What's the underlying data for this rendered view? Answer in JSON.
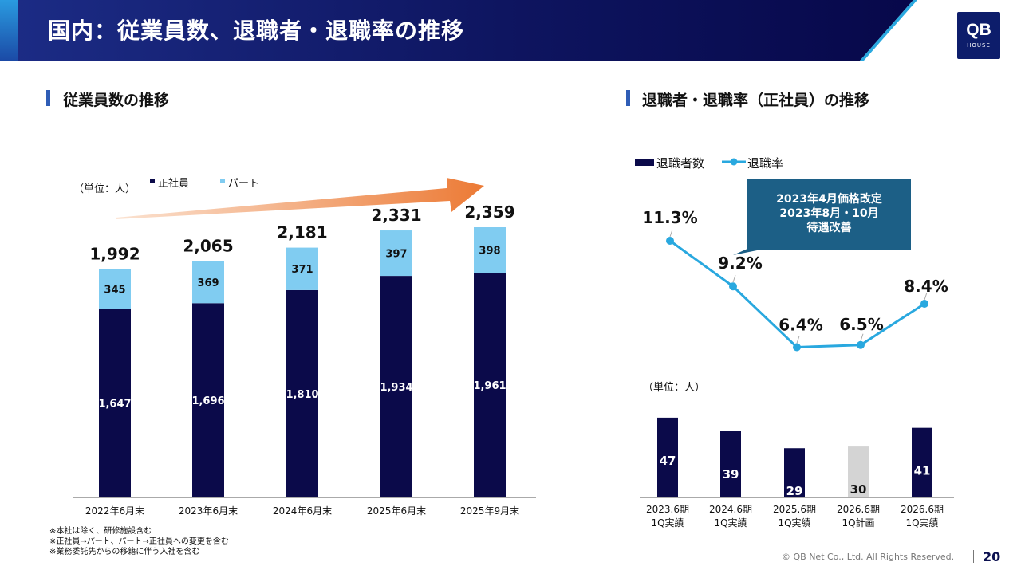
{
  "header": {
    "title": "国内：従業員数、退職者・退職率の推移"
  },
  "logo": {
    "line1": "QB",
    "line2": "HOUSE"
  },
  "colors": {
    "navy": "#0b0a4a",
    "light_blue": "#80ccf1",
    "line_blue": "#29a8df",
    "gray_bar": "#d4d4d4",
    "callout": "#1c5f86",
    "arrow": "#ec7a35"
  },
  "left_section": {
    "title": "従業員数の推移",
    "unit": "（単位：人）",
    "legend": [
      "正社員",
      "パート"
    ]
  },
  "right_section": {
    "title": "退職者・退職率（正社員）の推移",
    "legend": [
      "退職者数",
      "退職率"
    ],
    "unit": "（単位：人）"
  },
  "callout": {
    "lines": [
      "2023年4月価格改定",
      "2023年8月・10月",
      "待遇改善"
    ]
  },
  "chart_data": [
    {
      "type": "bar",
      "stacked": true,
      "title": "従業員数の推移",
      "categories": [
        "2022年6月末",
        "2023年6月末",
        "2024年6月末",
        "2025年6月末",
        "2025年9月末"
      ],
      "series": [
        {
          "name": "正社員",
          "values": [
            1647,
            1696,
            1810,
            1934,
            1961
          ],
          "labels": [
            "1,647",
            "1,696",
            "1,810",
            "1,934",
            "1,961"
          ]
        },
        {
          "name": "パート",
          "values": [
            345,
            369,
            371,
            397,
            398
          ],
          "labels": [
            "345",
            "369",
            "371",
            "397",
            "398"
          ]
        }
      ],
      "totals": [
        1992,
        2065,
        2181,
        2331,
        2359
      ],
      "total_labels": [
        "1,992",
        "2,065",
        "2,181",
        "2,331",
        "2,359"
      ],
      "ylim": [
        0,
        2600
      ]
    },
    {
      "type": "bar+line",
      "title": "退職者・退職率（正社員）の推移",
      "categories": [
        [
          "2023.6期",
          "1Q実績"
        ],
        [
          "2024.6期",
          "1Q実績"
        ],
        [
          "2025.6期",
          "1Q実績"
        ],
        [
          "2026.6期",
          "1Q計画"
        ],
        [
          "2026.6期",
          "1Q実績"
        ]
      ],
      "series": [
        {
          "name": "退職者数",
          "type": "bar",
          "values": [
            47,
            39,
            29,
            30,
            41
          ],
          "highlight_index": 3
        },
        {
          "name": "退職率",
          "type": "line",
          "values": [
            11.3,
            9.2,
            6.4,
            6.5,
            8.4
          ],
          "labels": [
            "11.3%",
            "9.2%",
            "6.4%",
            "6.5%",
            "8.4%"
          ]
        }
      ],
      "bar_ylim": [
        0,
        60
      ],
      "line_ylim": [
        4,
        13
      ]
    }
  ],
  "footnotes": [
    "※本社は除く、研修施設含む",
    "※正社員→パート、パート→正社員への変更を含む",
    "※業務委託先からの移籍に伴う入社を含む"
  ],
  "footer": {
    "copyright": "© QB Net Co., Ltd. All Rights Reserved.",
    "page": "20"
  }
}
